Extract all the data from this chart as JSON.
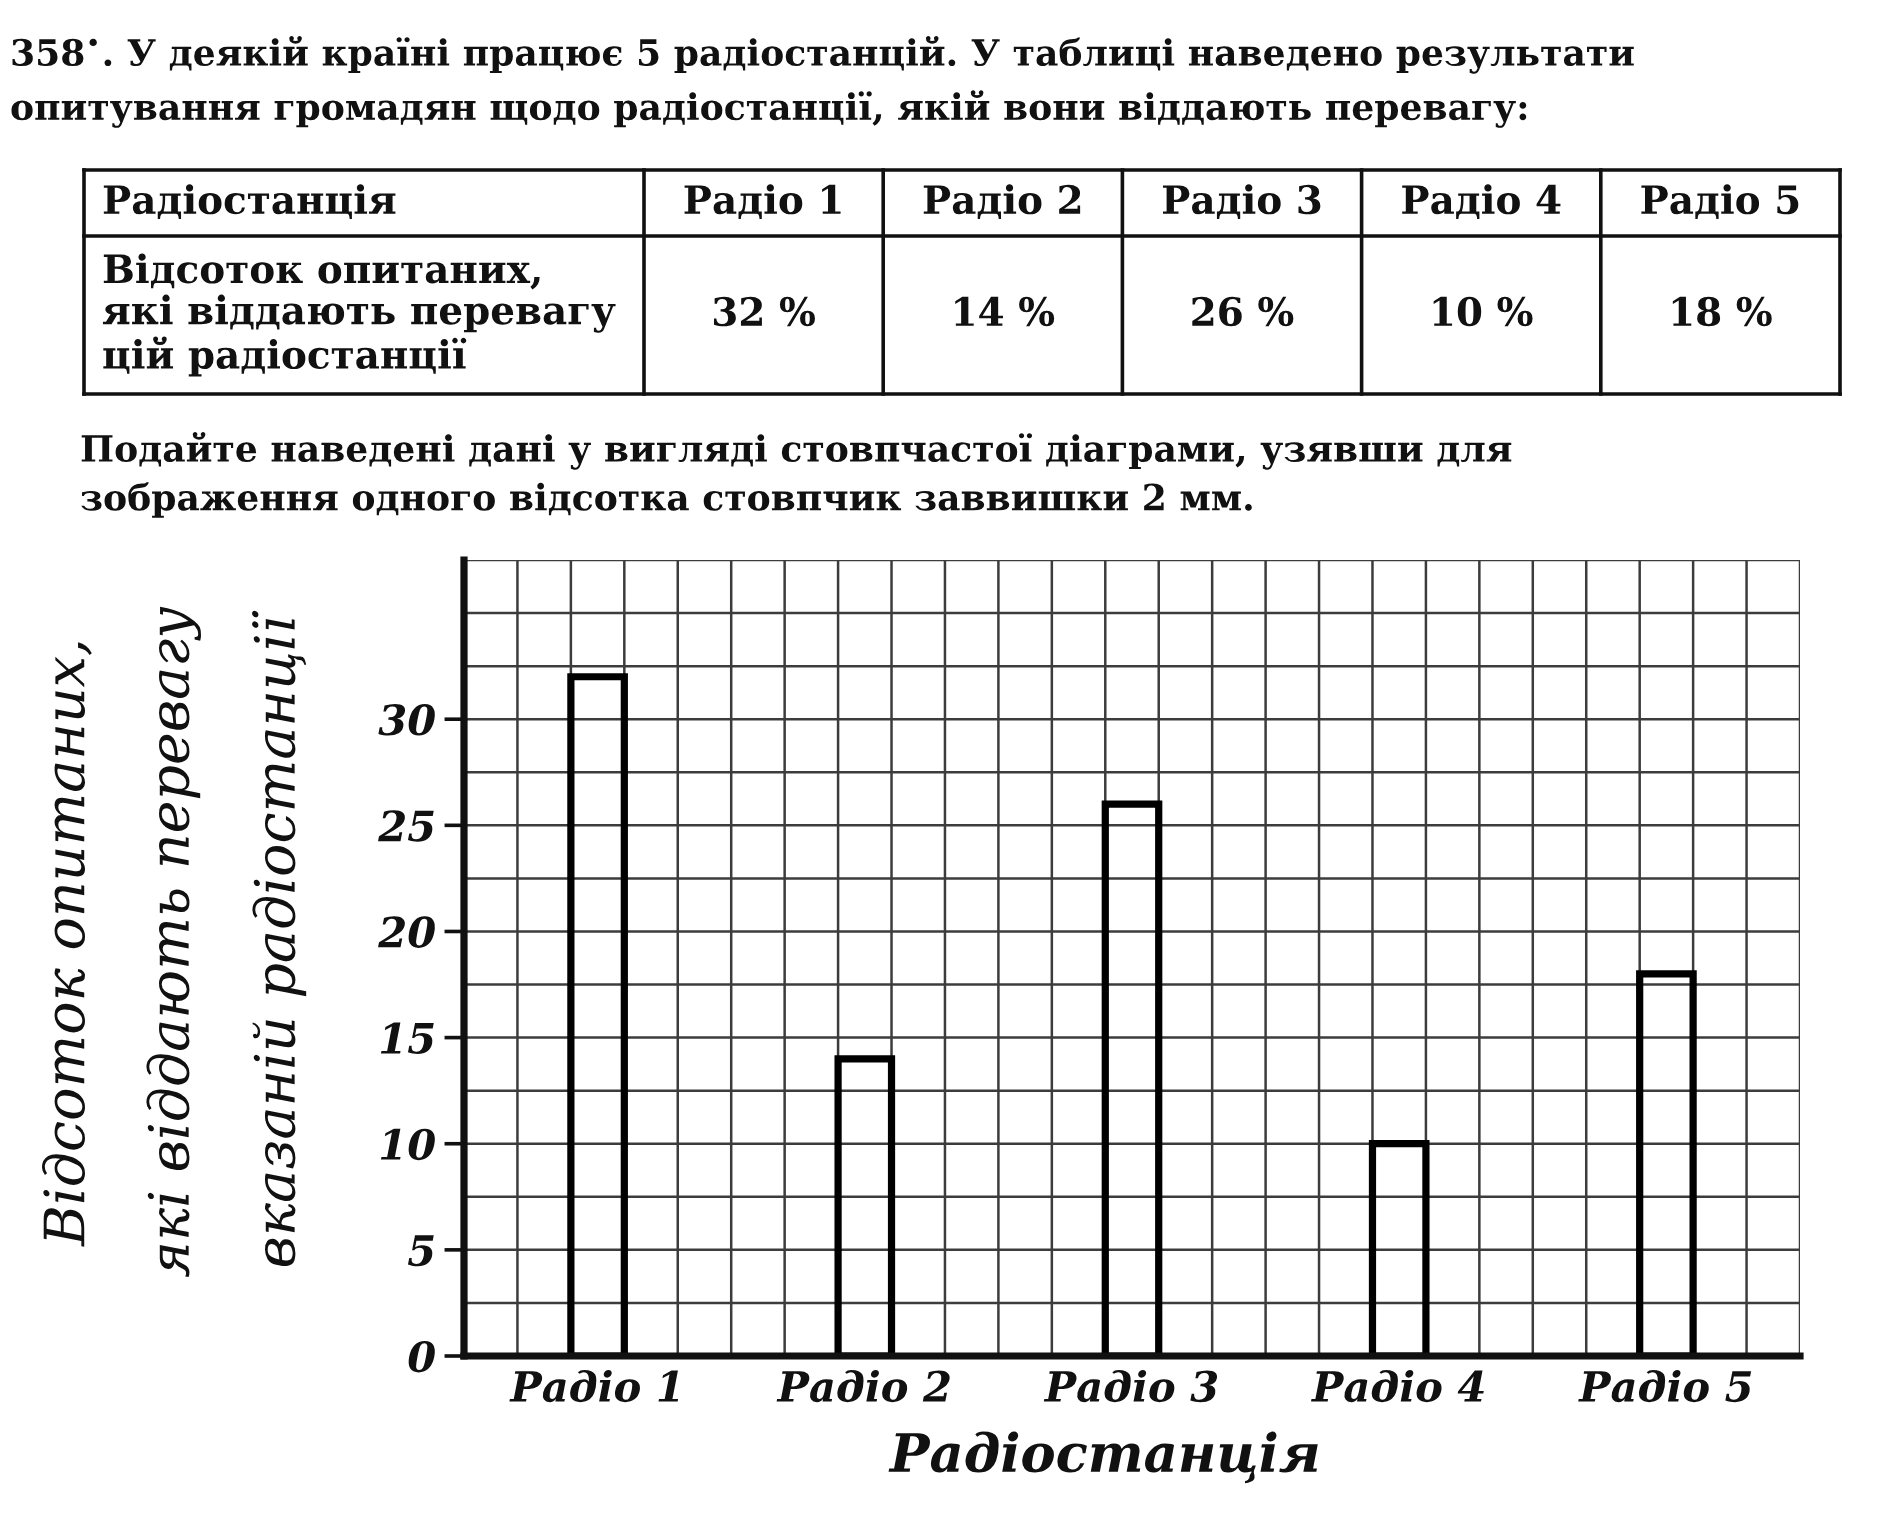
{
  "chart_data": {
    "type": "bar",
    "title": "358$^{•}$. У деякій країні працює 5 радіостанцій. У таблиці наведено результати\nопитування громадян щодо радіостанції, якій вони віддають перевагу:",
    "subtitle": "Подайте наведені дані у вигляді стовпчастої діаграми, узявши для\nзображення одного відсотка стовпчик заввишки 2 мм.",
    "annotations": [
      "Радіостанція",
      "Відсоток опитаних,\nякі віддають перевагу\nцій радіостанції",
      "32 %",
      "14 %",
      "26 %",
      "10 %",
      "18 %"
    ],
    "xlabel": "Радіостанція",
    "ylabel": "Відсоток опитаних,\nякі віддають перевагу\nвказаній радіостанції",
    "categories": [
      "Радіо 1",
      "Радіо 2",
      "Радіо 3",
      "Радіо 4",
      "Радіо 5"
    ],
    "values": [
      32,
      14,
      26,
      10,
      18
    ],
    "color": "#000000",
    "ylim": [
      0,
      37.5
    ],
    "yticks": [
      0,
      5,
      10,
      15,
      20,
      25,
      30
    ],
    "grid": true
  }
}
